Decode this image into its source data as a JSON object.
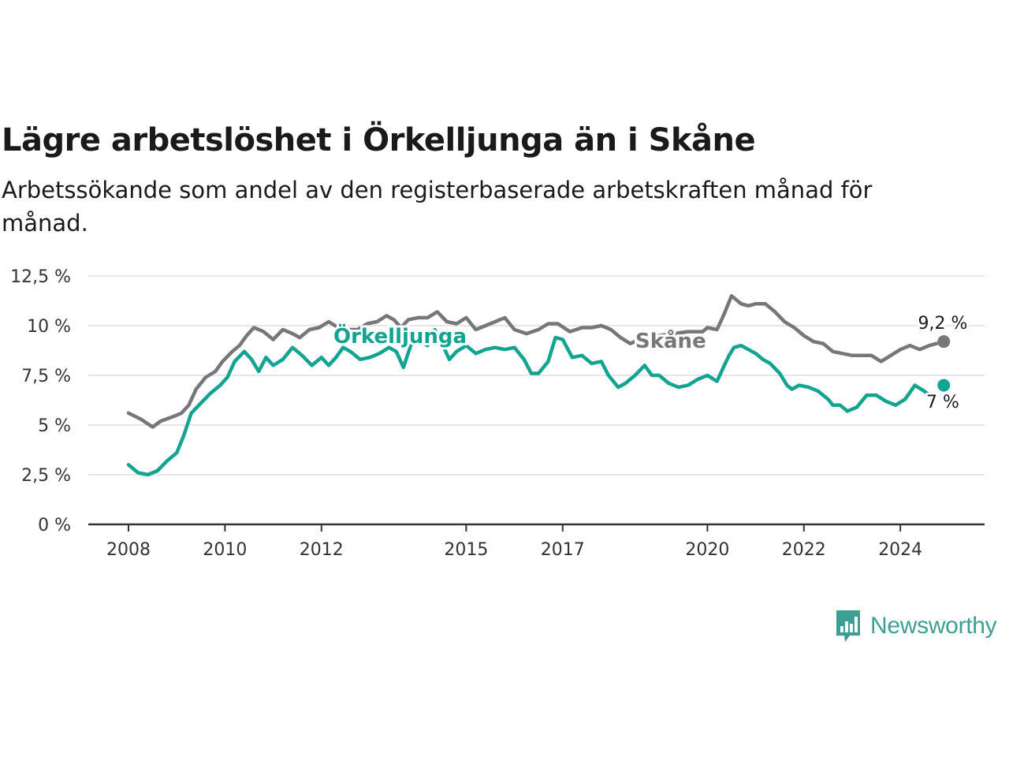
{
  "title": "Lägre arbetslöshet i Örkelljunga än i Skåne",
  "subtitle": "Arbetssökande som andel av den registerbaserade arbetskraften månad för månad.",
  "brand": {
    "name": "Newsworthy"
  },
  "colors": {
    "orkelljunga": "#13a391",
    "skane": "#77767b",
    "grid": "#dddddd",
    "axis": "#333333"
  },
  "chart_data": {
    "type": "line",
    "x_ticks": [
      "2008",
      "2010",
      "2012",
      "2015",
      "2017",
      "2020",
      "2022",
      "2024"
    ],
    "y_ticks": [
      "0 %",
      "2,5 %",
      "5 %",
      "7,5 %",
      "10 %",
      "12,5 %"
    ],
    "ylim": [
      0,
      12.5
    ],
    "grid": "horizontal",
    "series": [
      {
        "name": "Skåne",
        "end_label": "9,2 %",
        "points": [
          [
            2008.0,
            5.6
          ],
          [
            2008.25,
            5.3
          ],
          [
            2008.5,
            4.9
          ],
          [
            2008.67,
            5.2
          ],
          [
            2008.9,
            5.4
          ],
          [
            2009.1,
            5.6
          ],
          [
            2009.25,
            6.0
          ],
          [
            2009.4,
            6.8
          ],
          [
            2009.6,
            7.4
          ],
          [
            2009.8,
            7.7
          ],
          [
            2009.95,
            8.2
          ],
          [
            2010.15,
            8.7
          ],
          [
            2010.3,
            9.0
          ],
          [
            2010.45,
            9.5
          ],
          [
            2010.6,
            9.9
          ],
          [
            2010.8,
            9.7
          ],
          [
            2011.0,
            9.3
          ],
          [
            2011.2,
            9.8
          ],
          [
            2011.4,
            9.6
          ],
          [
            2011.55,
            9.4
          ],
          [
            2011.75,
            9.8
          ],
          [
            2011.95,
            9.9
          ],
          [
            2012.15,
            10.2
          ],
          [
            2012.35,
            9.9
          ],
          [
            2012.55,
            9.8
          ],
          [
            2012.75,
            9.8
          ],
          [
            2012.95,
            10.1
          ],
          [
            2013.15,
            10.2
          ],
          [
            2013.35,
            10.5
          ],
          [
            2013.5,
            10.3
          ],
          [
            2013.65,
            9.9
          ],
          [
            2013.8,
            10.3
          ],
          [
            2014.0,
            10.4
          ],
          [
            2014.2,
            10.4
          ],
          [
            2014.4,
            10.7
          ],
          [
            2014.6,
            10.2
          ],
          [
            2014.8,
            10.1
          ],
          [
            2015.0,
            10.4
          ],
          [
            2015.2,
            9.8
          ],
          [
            2015.4,
            10.0
          ],
          [
            2015.6,
            10.2
          ],
          [
            2015.8,
            10.4
          ],
          [
            2016.0,
            9.8
          ],
          [
            2016.25,
            9.6
          ],
          [
            2016.5,
            9.8
          ],
          [
            2016.7,
            10.1
          ],
          [
            2016.9,
            10.1
          ],
          [
            2017.15,
            9.7
          ],
          [
            2017.4,
            9.9
          ],
          [
            2017.6,
            9.9
          ],
          [
            2017.8,
            10.0
          ],
          [
            2018.0,
            9.8
          ],
          [
            2018.2,
            9.4
          ],
          [
            2018.4,
            9.1
          ],
          [
            2018.7,
            9.4
          ],
          [
            2019.0,
            9.5
          ],
          [
            2019.3,
            9.6
          ],
          [
            2019.6,
            9.7
          ],
          [
            2019.9,
            9.7
          ],
          [
            2020.0,
            9.9
          ],
          [
            2020.2,
            9.8
          ],
          [
            2020.35,
            10.6
          ],
          [
            2020.5,
            11.5
          ],
          [
            2020.7,
            11.1
          ],
          [
            2020.85,
            11.0
          ],
          [
            2021.0,
            11.1
          ],
          [
            2021.2,
            11.1
          ],
          [
            2021.4,
            10.7
          ],
          [
            2021.6,
            10.2
          ],
          [
            2021.8,
            9.9
          ],
          [
            2022.0,
            9.5
          ],
          [
            2022.2,
            9.2
          ],
          [
            2022.4,
            9.1
          ],
          [
            2022.6,
            8.7
          ],
          [
            2022.8,
            8.6
          ],
          [
            2023.0,
            8.5
          ],
          [
            2023.2,
            8.5
          ],
          [
            2023.4,
            8.5
          ],
          [
            2023.6,
            8.2
          ],
          [
            2023.8,
            8.5
          ],
          [
            2024.0,
            8.8
          ],
          [
            2024.2,
            9.0
          ],
          [
            2024.4,
            8.8
          ],
          [
            2024.6,
            9.0
          ],
          [
            2024.75,
            9.1
          ],
          [
            2024.9,
            9.2
          ]
        ]
      },
      {
        "name": "Örkelljunga",
        "end_label": "7 %",
        "points": [
          [
            2008.0,
            3.0
          ],
          [
            2008.2,
            2.6
          ],
          [
            2008.4,
            2.5
          ],
          [
            2008.6,
            2.7
          ],
          [
            2008.8,
            3.2
          ],
          [
            2009.0,
            3.6
          ],
          [
            2009.15,
            4.5
          ],
          [
            2009.3,
            5.6
          ],
          [
            2009.5,
            6.1
          ],
          [
            2009.7,
            6.6
          ],
          [
            2009.9,
            7.0
          ],
          [
            2010.05,
            7.4
          ],
          [
            2010.2,
            8.2
          ],
          [
            2010.4,
            8.7
          ],
          [
            2010.55,
            8.3
          ],
          [
            2010.7,
            7.7
          ],
          [
            2010.85,
            8.4
          ],
          [
            2011.0,
            8.0
          ],
          [
            2011.2,
            8.3
          ],
          [
            2011.4,
            8.9
          ],
          [
            2011.6,
            8.5
          ],
          [
            2011.8,
            8.0
          ],
          [
            2012.0,
            8.4
          ],
          [
            2012.15,
            8.0
          ],
          [
            2012.3,
            8.4
          ],
          [
            2012.45,
            8.9
          ],
          [
            2012.6,
            8.7
          ],
          [
            2012.8,
            8.3
          ],
          [
            2013.0,
            8.4
          ],
          [
            2013.2,
            8.6
          ],
          [
            2013.4,
            8.9
          ],
          [
            2013.55,
            8.7
          ],
          [
            2013.7,
            7.9
          ],
          [
            2013.85,
            9.0
          ],
          [
            2014.0,
            9.3
          ],
          [
            2014.2,
            9.0
          ],
          [
            2014.35,
            9.8
          ],
          [
            2014.5,
            9.1
          ],
          [
            2014.65,
            8.3
          ],
          [
            2014.8,
            8.7
          ],
          [
            2015.0,
            9.0
          ],
          [
            2015.2,
            8.6
          ],
          [
            2015.4,
            8.8
          ],
          [
            2015.6,
            8.9
          ],
          [
            2015.8,
            8.8
          ],
          [
            2016.0,
            8.9
          ],
          [
            2016.2,
            8.3
          ],
          [
            2016.35,
            7.6
          ],
          [
            2016.5,
            7.6
          ],
          [
            2016.7,
            8.2
          ],
          [
            2016.85,
            9.4
          ],
          [
            2017.0,
            9.3
          ],
          [
            2017.2,
            8.4
          ],
          [
            2017.4,
            8.5
          ],
          [
            2017.6,
            8.1
          ],
          [
            2017.8,
            8.2
          ],
          [
            2017.95,
            7.5
          ],
          [
            2018.15,
            6.9
          ],
          [
            2018.3,
            7.1
          ],
          [
            2018.5,
            7.5
          ],
          [
            2018.7,
            8.0
          ],
          [
            2018.85,
            7.5
          ],
          [
            2019.0,
            7.5
          ],
          [
            2019.2,
            7.1
          ],
          [
            2019.4,
            6.9
          ],
          [
            2019.6,
            7.0
          ],
          [
            2019.8,
            7.3
          ],
          [
            2020.0,
            7.5
          ],
          [
            2020.2,
            7.2
          ],
          [
            2020.35,
            8.0
          ],
          [
            2020.45,
            8.5
          ],
          [
            2020.55,
            8.9
          ],
          [
            2020.7,
            9.0
          ],
          [
            2020.85,
            8.8
          ],
          [
            2021.0,
            8.6
          ],
          [
            2021.15,
            8.3
          ],
          [
            2021.3,
            8.1
          ],
          [
            2021.5,
            7.6
          ],
          [
            2021.65,
            7.0
          ],
          [
            2021.75,
            6.8
          ],
          [
            2021.9,
            7.0
          ],
          [
            2022.1,
            6.9
          ],
          [
            2022.3,
            6.7
          ],
          [
            2022.5,
            6.3
          ],
          [
            2022.6,
            6.0
          ],
          [
            2022.75,
            6.0
          ],
          [
            2022.9,
            5.7
          ],
          [
            2023.1,
            5.9
          ],
          [
            2023.3,
            6.5
          ],
          [
            2023.5,
            6.5
          ],
          [
            2023.7,
            6.2
          ],
          [
            2023.9,
            6.0
          ],
          [
            2024.1,
            6.3
          ],
          [
            2024.3,
            7.0
          ],
          [
            2024.5,
            6.7
          ],
          [
            2024.7,
            6.3
          ],
          [
            2024.9,
            7.0
          ]
        ]
      }
    ]
  }
}
